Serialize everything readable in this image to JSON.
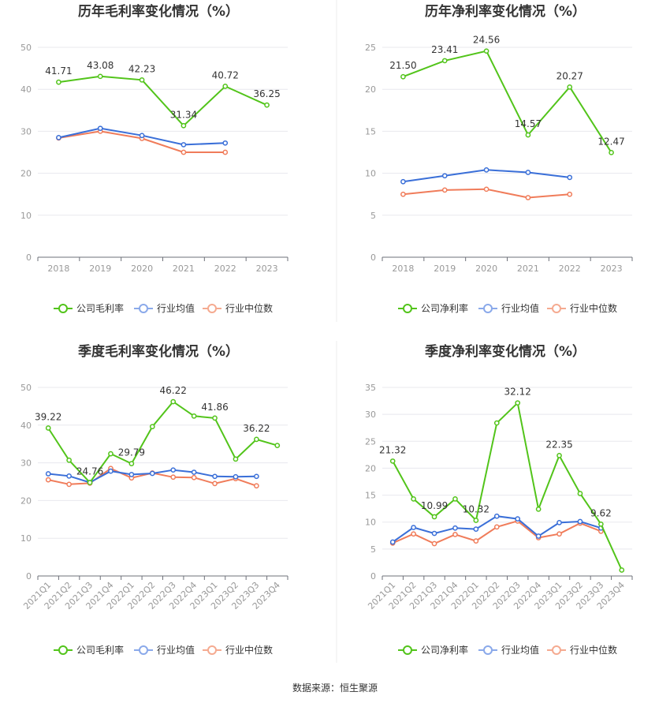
{
  "colors": {
    "company": "#52c41a",
    "industry_avg": "#3a6fd8",
    "industry_median": "#f07c5a",
    "legend_avg": "#8aa9ea",
    "legend_median": "#f5aa90"
  },
  "source": "数据来源：恒生聚源",
  "chart_data": [
    {
      "type": "line",
      "title": "历年毛利率变化情况（%）",
      "categories": [
        "2018",
        "2019",
        "2020",
        "2021",
        "2022",
        "2023"
      ],
      "ylim": [
        0,
        50
      ],
      "yticks": [
        0,
        10,
        20,
        30,
        40,
        50
      ],
      "legend_position": "bottom",
      "series": [
        {
          "name": "公司毛利率",
          "values": [
            41.71,
            43.08,
            42.23,
            31.34,
            40.72,
            36.25
          ],
          "labels": [
            "41.71",
            "43.08",
            "42.23",
            "31.34",
            "40.72",
            "36.25"
          ]
        },
        {
          "name": "行业均值",
          "values": [
            28.5,
            30.7,
            29.0,
            26.8,
            27.2,
            null
          ]
        },
        {
          "name": "行业中位数",
          "values": [
            28.4,
            30.0,
            28.3,
            25.0,
            25.0,
            null
          ]
        }
      ]
    },
    {
      "type": "line",
      "title": "历年净利率变化情况（%）",
      "categories": [
        "2018",
        "2019",
        "2020",
        "2021",
        "2022",
        "2023"
      ],
      "ylim": [
        0,
        25
      ],
      "yticks": [
        0,
        5,
        10,
        15,
        20,
        25
      ],
      "legend_position": "bottom",
      "series": [
        {
          "name": "公司净利率",
          "values": [
            21.5,
            23.41,
            24.56,
            14.57,
            20.27,
            12.47
          ],
          "labels": [
            "21.50",
            "23.41",
            "24.56",
            "14.57",
            "20.27",
            "12.47"
          ]
        },
        {
          "name": "行业均值",
          "values": [
            9.0,
            9.7,
            10.4,
            10.1,
            9.5,
            null
          ]
        },
        {
          "name": "行业中位数",
          "values": [
            7.5,
            8.0,
            8.1,
            7.1,
            7.5,
            null
          ]
        }
      ]
    },
    {
      "type": "line",
      "title": "季度毛利率变化情况（%）",
      "categories": [
        "2021Q1",
        "2021Q2",
        "2021Q3",
        "2021Q4",
        "2022Q1",
        "2022Q2",
        "2022Q3",
        "2022Q4",
        "2023Q1",
        "2023Q2",
        "2023Q3",
        "2023Q4"
      ],
      "ylim": [
        0,
        50
      ],
      "yticks": [
        0,
        10,
        20,
        30,
        40,
        50
      ],
      "legend_position": "bottom",
      "series": [
        {
          "name": "公司毛利率",
          "values": [
            39.22,
            30.7,
            24.76,
            32.4,
            29.79,
            39.6,
            46.22,
            42.4,
            41.86,
            31.0,
            36.22,
            34.6
          ],
          "labels": [
            "39.22",
            "",
            "24.76",
            "",
            "29.79",
            "",
            "46.22",
            "",
            "41.86",
            "",
            "36.22",
            ""
          ]
        },
        {
          "name": "行业均值",
          "values": [
            27.1,
            26.5,
            24.8,
            27.8,
            26.9,
            27.2,
            28.1,
            27.5,
            26.4,
            26.3,
            26.4,
            null
          ]
        },
        {
          "name": "行业中位数",
          "values": [
            25.5,
            24.3,
            24.6,
            28.5,
            26.0,
            27.3,
            26.2,
            26.1,
            24.5,
            25.8,
            23.9,
            null
          ]
        }
      ]
    },
    {
      "type": "line",
      "title": "季度净利率变化情况（%）",
      "categories": [
        "2021Q1",
        "2021Q2",
        "2021Q3",
        "2021Q4",
        "2022Q1",
        "2022Q2",
        "2022Q3",
        "2022Q4",
        "2023Q1",
        "2023Q2",
        "2023Q3",
        "2023Q4"
      ],
      "ylim": [
        0,
        35
      ],
      "yticks": [
        0,
        5,
        10,
        15,
        20,
        25,
        30,
        35
      ],
      "legend_position": "bottom",
      "series": [
        {
          "name": "公司净利率",
          "values": [
            21.32,
            14.3,
            10.99,
            14.3,
            10.32,
            28.4,
            32.12,
            12.4,
            22.35,
            15.3,
            9.62,
            1.1
          ],
          "labels": [
            "21.32",
            "",
            "10.99",
            "",
            "10.32",
            "",
            "32.12",
            "",
            "22.35",
            "",
            "9.62",
            ""
          ]
        },
        {
          "name": "行业均值",
          "values": [
            6.3,
            9.0,
            7.9,
            8.9,
            8.7,
            11.1,
            10.6,
            7.4,
            9.9,
            10.1,
            8.9,
            null
          ]
        },
        {
          "name": "行业中位数",
          "values": [
            6.1,
            7.8,
            6.0,
            7.7,
            6.5,
            9.1,
            10.2,
            7.1,
            7.8,
            9.8,
            8.3,
            null
          ]
        }
      ]
    }
  ]
}
